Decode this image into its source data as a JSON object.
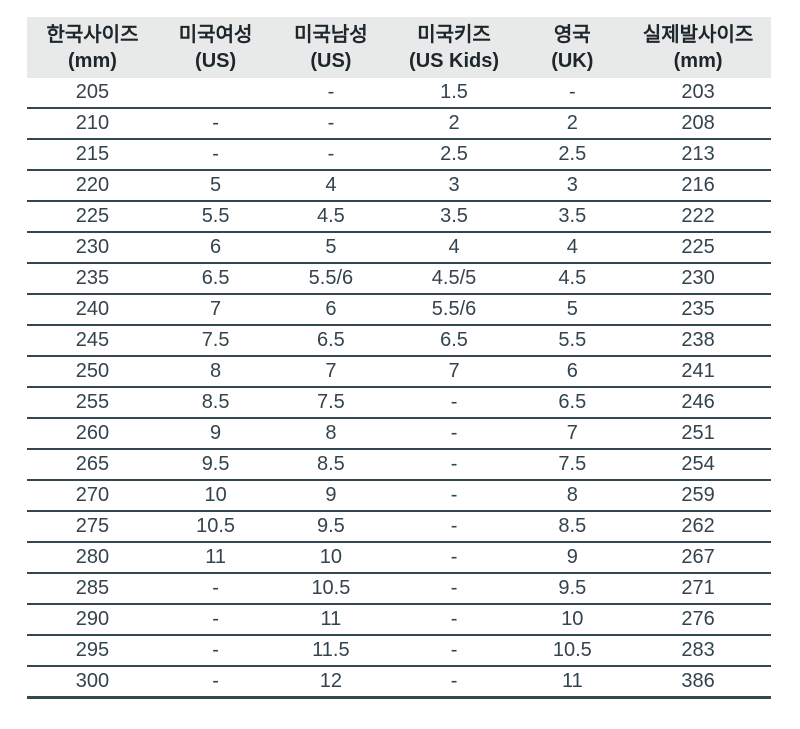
{
  "table": {
    "name": "shoe-size-conversion-chart",
    "columns": [
      {
        "label": "한국사이즈",
        "sublabel": "(mm)"
      },
      {
        "label": "미국여성",
        "sublabel": "(US)"
      },
      {
        "label": "미국남성",
        "sublabel": "(US)"
      },
      {
        "label": "미국키즈",
        "sublabel": "(US Kids)"
      },
      {
        "label": "영국",
        "sublabel": "(UK)"
      },
      {
        "label": "실제발사이즈",
        "sublabel": "(mm)"
      }
    ],
    "rows": [
      [
        "205",
        "",
        "-",
        "1.5",
        "-",
        "203"
      ],
      [
        "210",
        "-",
        "-",
        "2",
        "2",
        "208"
      ],
      [
        "215",
        "-",
        "-",
        "2.5",
        "2.5",
        "213"
      ],
      [
        "220",
        "5",
        "4",
        "3",
        "3",
        "216"
      ],
      [
        "225",
        "5.5",
        "4.5",
        "3.5",
        "3.5",
        "222"
      ],
      [
        "230",
        "6",
        "5",
        "4",
        "4",
        "225"
      ],
      [
        "235",
        "6.5",
        "5.5/6",
        "4.5/5",
        "4.5",
        "230"
      ],
      [
        "240",
        "7",
        "6",
        "5.5/6",
        "5",
        "235"
      ],
      [
        "245",
        "7.5",
        "6.5",
        "6.5",
        "5.5",
        "238"
      ],
      [
        "250",
        "8",
        "7",
        "7",
        "6",
        "241"
      ],
      [
        "255",
        "8.5",
        "7.5",
        "-",
        "6.5",
        "246"
      ],
      [
        "260",
        "9",
        "8",
        "-",
        "7",
        "251"
      ],
      [
        "265",
        "9.5",
        "8.5",
        "-",
        "7.5",
        "254"
      ],
      [
        "270",
        "10",
        "9",
        "-",
        "8",
        "259"
      ],
      [
        "275",
        "10.5",
        "9.5",
        "-",
        "8.5",
        "262"
      ],
      [
        "280",
        "11",
        "10",
        "-",
        "9",
        "267"
      ],
      [
        "285",
        "-",
        "10.5",
        "-",
        "9.5",
        "271"
      ],
      [
        "290",
        "-",
        "11",
        "-",
        "10",
        "276"
      ],
      [
        "295",
        "-",
        "11.5",
        "-",
        "10.5",
        "283"
      ],
      [
        "300",
        "-",
        "12",
        "-",
        "11",
        "386"
      ]
    ]
  },
  "colors": {
    "header_bg": "#e8eae9",
    "separator_line": "#334750",
    "header_text": "#1c262b",
    "cell_text": "#33444d",
    "page_bg": "#ffffff"
  }
}
